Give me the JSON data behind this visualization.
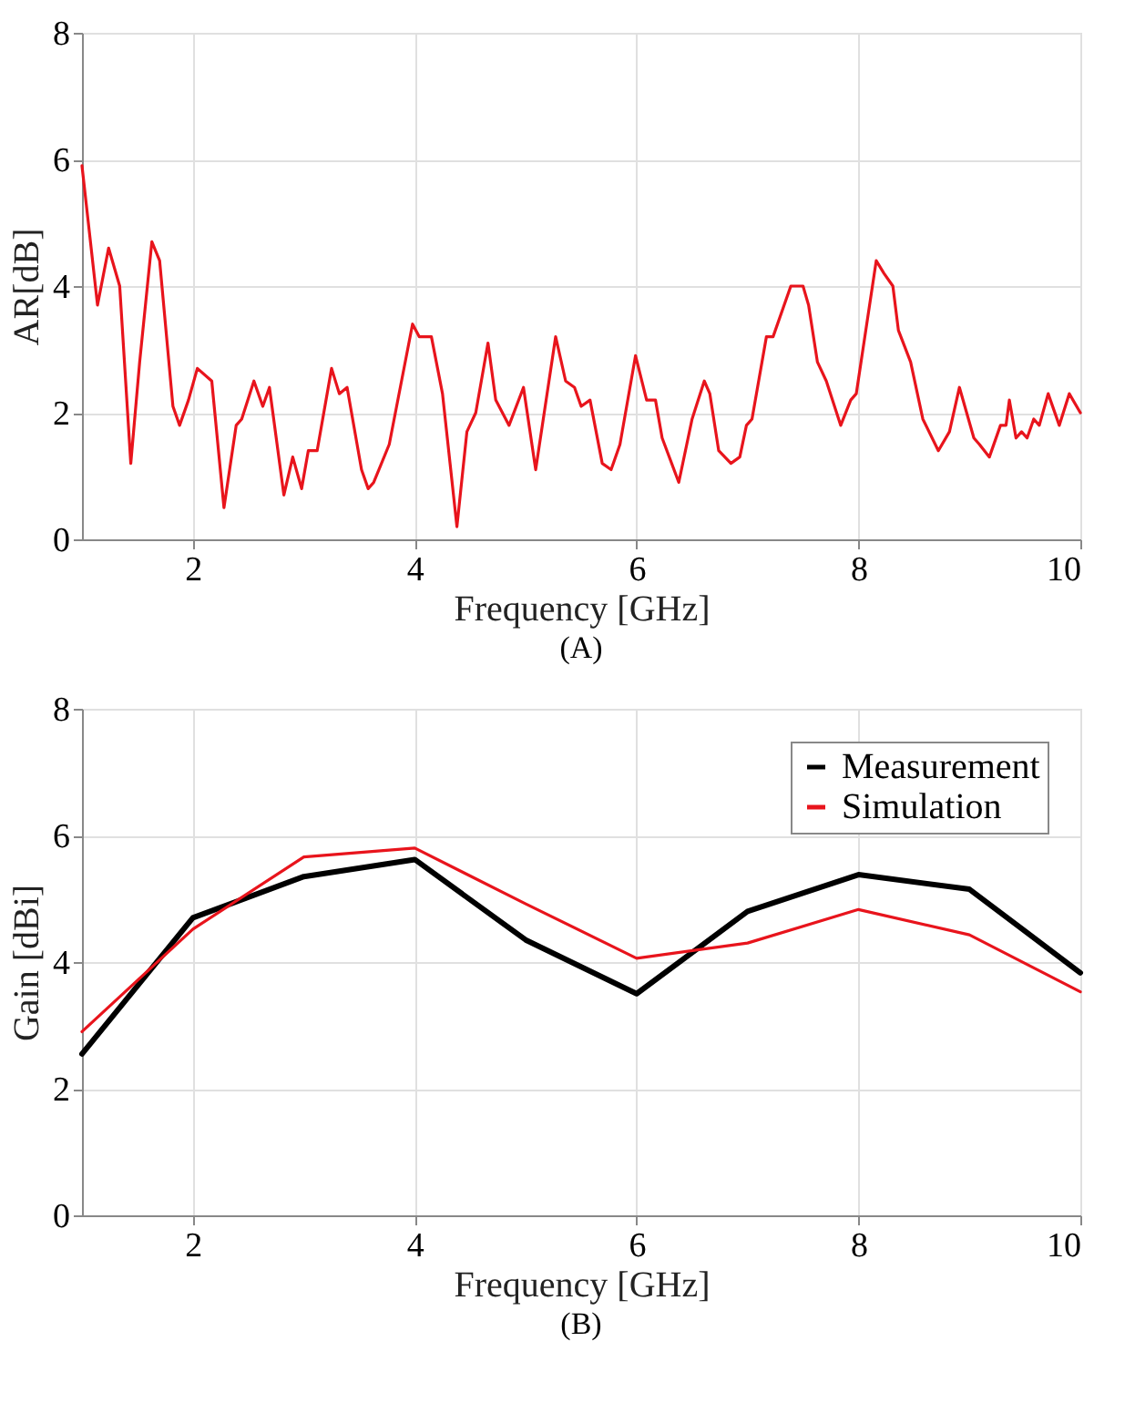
{
  "chart_data": [
    {
      "type": "line",
      "xlabel": "Frequency [GHz]",
      "ylabel": "AR[dB]",
      "xlim": [
        1,
        10
      ],
      "ylim": [
        0,
        8
      ],
      "xticks": [
        2,
        4,
        6,
        8,
        10
      ],
      "yticks": [
        0,
        2,
        4,
        6,
        8
      ],
      "grid": true,
      "legend": false,
      "annotations": [
        "(A)"
      ],
      "series": [
        {
          "color": "#e8141c",
          "x": [
            1.0,
            1.14,
            1.24,
            1.34,
            1.44,
            1.52,
            1.63,
            1.7,
            1.82,
            1.88,
            1.96,
            2.04,
            2.17,
            2.28,
            2.39,
            2.44,
            2.55,
            2.63,
            2.69,
            2.82,
            2.9,
            2.98,
            3.04,
            3.12,
            3.25,
            3.32,
            3.39,
            3.52,
            3.58,
            3.63,
            3.77,
            3.98,
            4.04,
            4.15,
            4.25,
            4.38,
            4.47,
            4.55,
            4.66,
            4.73,
            4.85,
            4.98,
            5.09,
            5.27,
            5.36,
            5.44,
            5.5,
            5.58,
            5.69,
            5.77,
            5.85,
            5.99,
            6.09,
            6.17,
            6.23,
            6.38,
            6.5,
            6.61,
            6.66,
            6.74,
            6.85,
            6.93,
            6.99,
            7.04,
            7.17,
            7.23,
            7.39,
            7.5,
            7.55,
            7.63,
            7.71,
            7.84,
            7.93,
            7.98,
            8.16,
            8.23,
            8.31,
            8.36,
            8.47,
            8.58,
            8.72,
            8.82,
            8.91,
            9.04,
            9.09,
            9.18,
            9.28,
            9.33,
            9.36,
            9.42,
            9.47,
            9.52,
            9.58,
            9.63,
            9.71,
            9.81,
            9.9,
            10.0
          ],
          "values": [
            5.9,
            3.7,
            4.6,
            4.0,
            1.2,
            2.8,
            4.7,
            4.4,
            2.1,
            1.8,
            2.2,
            2.7,
            2.5,
            0.5,
            1.8,
            1.9,
            2.5,
            2.1,
            2.4,
            0.7,
            1.3,
            0.8,
            1.4,
            1.4,
            2.7,
            2.3,
            2.4,
            1.1,
            0.8,
            0.9,
            1.5,
            3.4,
            3.2,
            3.2,
            2.3,
            0.2,
            1.7,
            2.0,
            3.1,
            2.2,
            1.8,
            2.4,
            1.1,
            3.2,
            2.5,
            2.4,
            2.1,
            2.2,
            1.2,
            1.1,
            1.5,
            2.9,
            2.2,
            2.2,
            1.6,
            0.9,
            1.9,
            2.5,
            2.3,
            1.4,
            1.2,
            1.3,
            1.8,
            1.9,
            3.2,
            3.2,
            4.0,
            4.0,
            3.7,
            2.8,
            2.5,
            1.8,
            2.2,
            2.3,
            4.4,
            4.2,
            4.0,
            3.3,
            2.8,
            1.9,
            1.4,
            1.7,
            2.4,
            1.6,
            1.5,
            1.3,
            1.8,
            1.8,
            2.2,
            1.6,
            1.7,
            1.6,
            1.9,
            1.8,
            2.3,
            1.8,
            2.3,
            2.0
          ]
        }
      ]
    },
    {
      "type": "line",
      "xlabel": "Frequency [GHz]",
      "ylabel": "Gain [dBi]",
      "xlim": [
        1,
        10
      ],
      "ylim": [
        0,
        8
      ],
      "xticks": [
        2,
        4,
        6,
        8,
        10
      ],
      "yticks": [
        0,
        2,
        4,
        6,
        8
      ],
      "grid": true,
      "legend": "top right",
      "annotations": [
        "(B)"
      ],
      "x": [
        1,
        2,
        3,
        4,
        5,
        6,
        7,
        8,
        9,
        10
      ],
      "series": [
        {
          "name": "Measurement",
          "color": "#000000",
          "values": [
            2.55,
            4.7,
            5.35,
            5.62,
            4.35,
            3.5,
            4.8,
            5.38,
            5.15,
            3.83
          ]
        },
        {
          "name": "Simulation",
          "color": "#e8141c",
          "values": [
            2.9,
            4.52,
            5.66,
            5.8,
            4.92,
            4.06,
            4.3,
            4.83,
            4.43,
            3.53
          ]
        }
      ]
    }
  ]
}
